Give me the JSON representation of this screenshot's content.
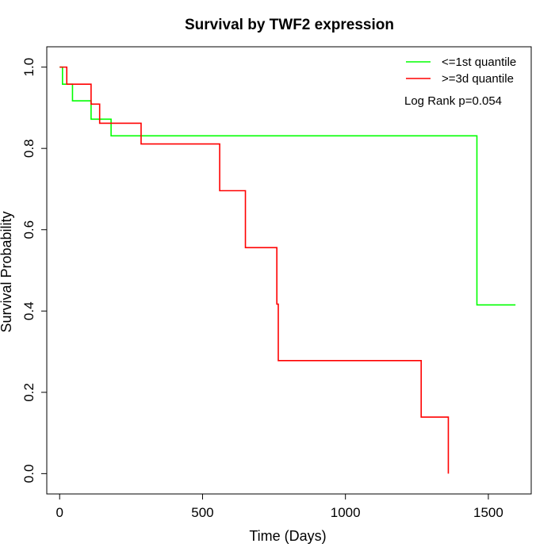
{
  "chart_data": {
    "type": "line",
    "title": "Survival by TWF2 expression",
    "xlabel": "Time (Days)",
    "ylabel": "Survival Probability",
    "xlim": [
      -45,
      1650
    ],
    "ylim": [
      -0.05,
      1.05
    ],
    "x_ticks": [
      0,
      500,
      1000,
      1500
    ],
    "x_tick_labels": [
      "0",
      "500",
      "1000",
      "1500"
    ],
    "y_ticks": [
      0.0,
      0.2,
      0.4,
      0.6,
      0.8,
      1.0
    ],
    "y_tick_labels": [
      "0.0",
      "0.2",
      "0.4",
      "0.6",
      "0.8",
      "1.0"
    ],
    "legend_position": "top-right",
    "annotation": "Log Rank p=0.054",
    "series": [
      {
        "name": "<=1st quantile",
        "color": "#00ff00",
        "step": true,
        "x": [
          0,
          10,
          45,
          110,
          180,
          1460,
          1595
        ],
        "y": [
          1.0,
          0.958,
          0.917,
          0.872,
          0.831,
          0.415,
          0.415
        ]
      },
      {
        "name": ">=3d quantile",
        "color": "#ff0000",
        "step": true,
        "x": [
          0,
          25,
          110,
          140,
          285,
          560,
          650,
          760,
          765,
          1265,
          1360,
          1360
        ],
        "y": [
          1.0,
          0.958,
          0.909,
          0.862,
          0.811,
          0.696,
          0.556,
          0.417,
          0.278,
          0.139,
          0.139,
          0.0
        ]
      }
    ]
  }
}
